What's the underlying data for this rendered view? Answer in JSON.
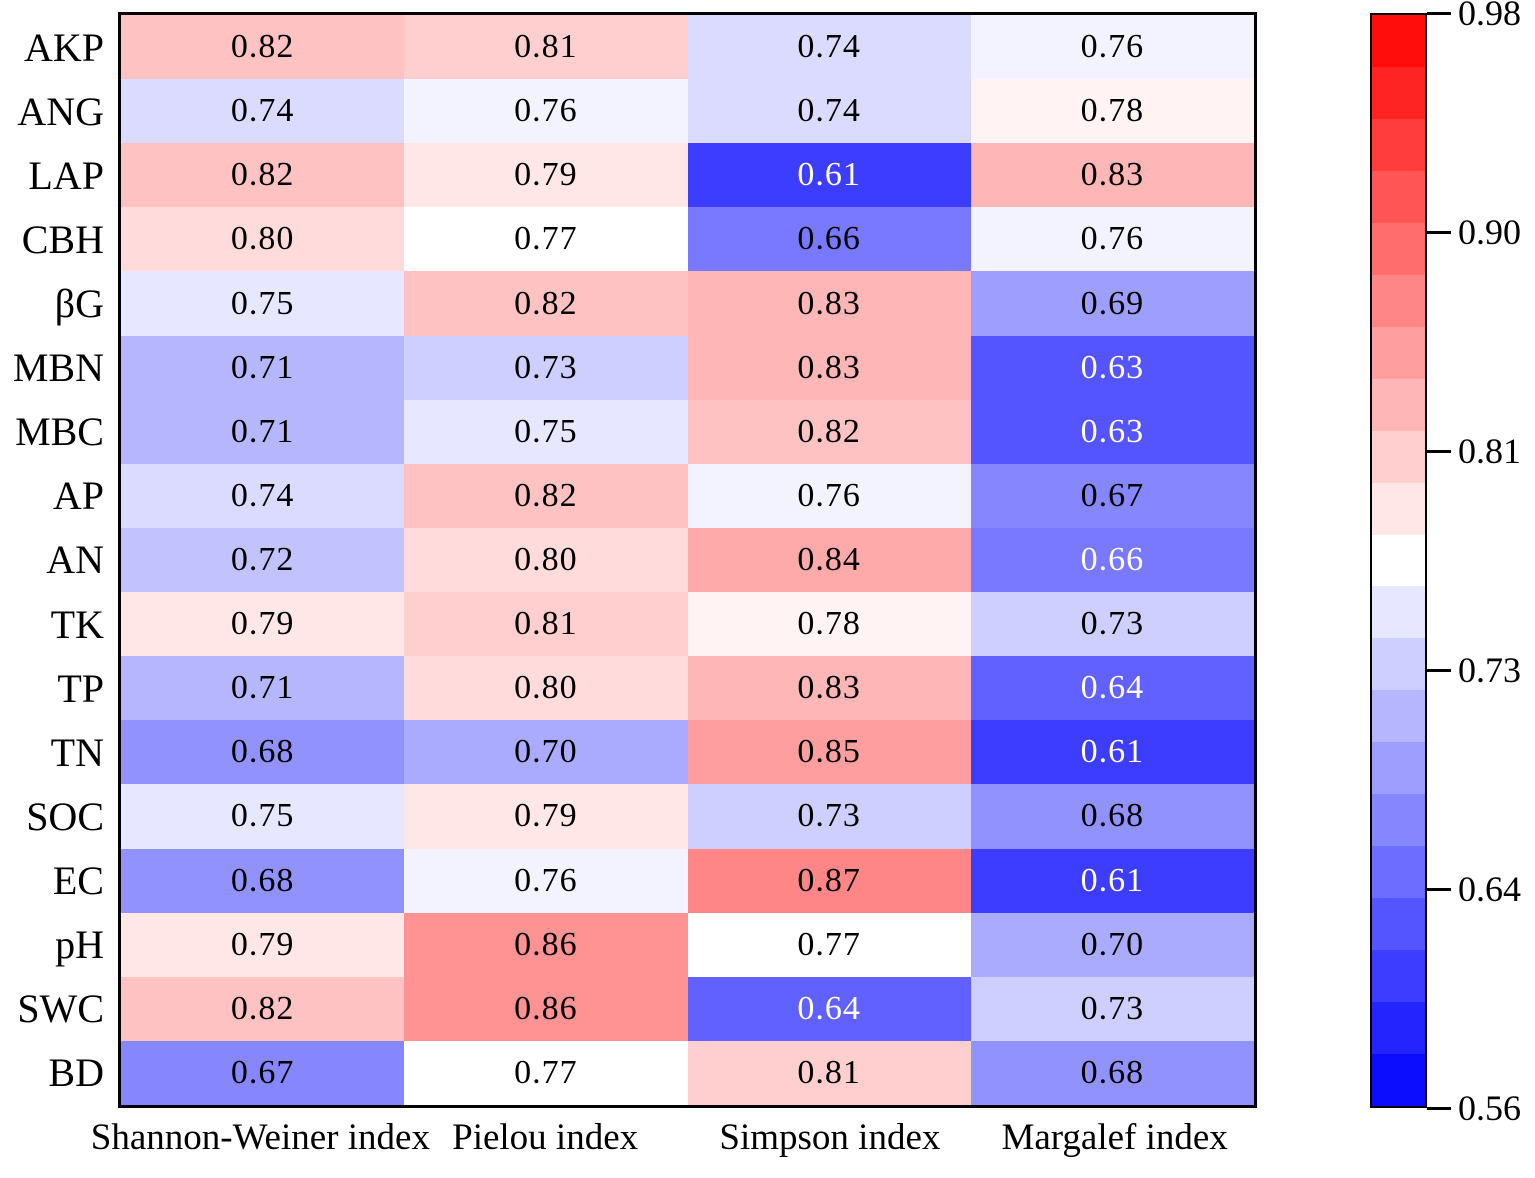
{
  "chart_data": {
    "type": "heatmap",
    "rows": [
      "AKP",
      "ANG",
      "LAP",
      "CBH",
      "βG",
      "MBN",
      "MBC",
      "AP",
      "AN",
      "TK",
      "TP",
      "TN",
      "SOC",
      "EC",
      "pH",
      "SWC",
      "BD"
    ],
    "columns": [
      "Shannon-Weiner index",
      "Pielou index",
      "Simpson index",
      "Margalef index"
    ],
    "values": [
      [
        0.82,
        0.81,
        0.74,
        0.76
      ],
      [
        0.74,
        0.76,
        0.74,
        0.78
      ],
      [
        0.82,
        0.79,
        0.61,
        0.83
      ],
      [
        0.8,
        0.77,
        0.66,
        0.76
      ],
      [
        0.75,
        0.82,
        0.83,
        0.69
      ],
      [
        0.71,
        0.73,
        0.83,
        0.63
      ],
      [
        0.71,
        0.75,
        0.82,
        0.63
      ],
      [
        0.74,
        0.82,
        0.76,
        0.67
      ],
      [
        0.72,
        0.8,
        0.84,
        0.66
      ],
      [
        0.79,
        0.81,
        0.78,
        0.73
      ],
      [
        0.71,
        0.8,
        0.83,
        0.64
      ],
      [
        0.68,
        0.7,
        0.85,
        0.61
      ],
      [
        0.75,
        0.79,
        0.73,
        0.68
      ],
      [
        0.68,
        0.76,
        0.87,
        0.61
      ],
      [
        0.79,
        0.86,
        0.77,
        0.7
      ],
      [
        0.82,
        0.86,
        0.64,
        0.73
      ],
      [
        0.67,
        0.77,
        0.81,
        0.68
      ]
    ],
    "white_text_cells": [
      [
        2,
        2
      ],
      [
        5,
        3
      ],
      [
        6,
        3
      ],
      [
        8,
        3
      ],
      [
        10,
        3
      ],
      [
        11,
        3
      ],
      [
        13,
        3
      ],
      [
        15,
        2
      ]
    ],
    "value_decimals": 2,
    "colormap": {
      "name": "blue-white-red",
      "vmin": 0.56,
      "vmax": 0.98,
      "levels": 21,
      "low_color": "#0000ff",
      "mid_color": "#ffffff",
      "high_color": "#ff0000"
    },
    "colorbar": {
      "tick_labels": [
        "0.98",
        "0.90",
        "0.81",
        "0.73",
        "0.64",
        "0.56"
      ]
    },
    "grid": false,
    "legend_position": "right-colorbar"
  }
}
